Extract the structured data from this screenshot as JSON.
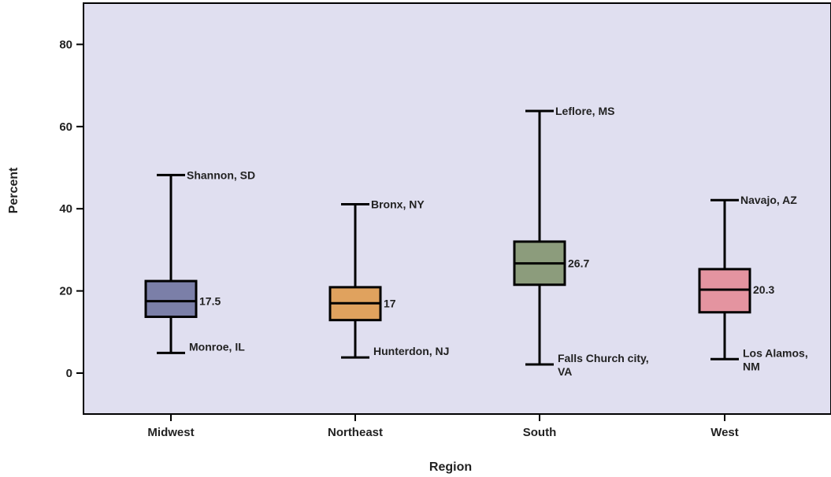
{
  "chart_data": {
    "type": "box",
    "title": "",
    "xlabel": "Region",
    "ylabel": "Percent",
    "ylim": [
      -10,
      90
    ],
    "yticks": [
      0,
      20,
      40,
      60,
      80
    ],
    "grid": false,
    "categories": [
      "Midwest",
      "Northeast",
      "South",
      "West"
    ],
    "boxes": [
      {
        "category": "Midwest",
        "min": 4.9,
        "q1": 13.7,
        "median": 17.5,
        "q3": 22.4,
        "max": 48.2,
        "median_label": "17.5",
        "max_label": [
          "Shannon, SD"
        ],
        "min_label": [
          "Monroe, IL"
        ],
        "color": "#7b7fa8"
      },
      {
        "category": "Northeast",
        "min": 3.8,
        "q1": 12.9,
        "median": 17.0,
        "q3": 20.9,
        "max": 41.1,
        "median_label": "17",
        "max_label": [
          "Bronx, NY"
        ],
        "min_label": [
          "Hunterdon, NJ"
        ],
        "color": "#e0a25e"
      },
      {
        "category": "South",
        "min": 2.1,
        "q1": 21.5,
        "median": 26.7,
        "q3": 32.0,
        "max": 63.8,
        "median_label": "26.7",
        "max_label": [
          "Leflore, MS"
        ],
        "min_label": [
          "Falls Church city,",
          "VA"
        ],
        "color": "#8c9c7c"
      },
      {
        "category": "West",
        "min": 3.4,
        "q1": 14.8,
        "median": 20.3,
        "q3": 25.3,
        "max": 42.1,
        "median_label": "20.3",
        "max_label": [
          "Navajo, AZ"
        ],
        "min_label": [
          "Los Alamos,",
          "NM"
        ],
        "color": "#e494a0"
      }
    ],
    "plot_background": "#e0dff0"
  }
}
